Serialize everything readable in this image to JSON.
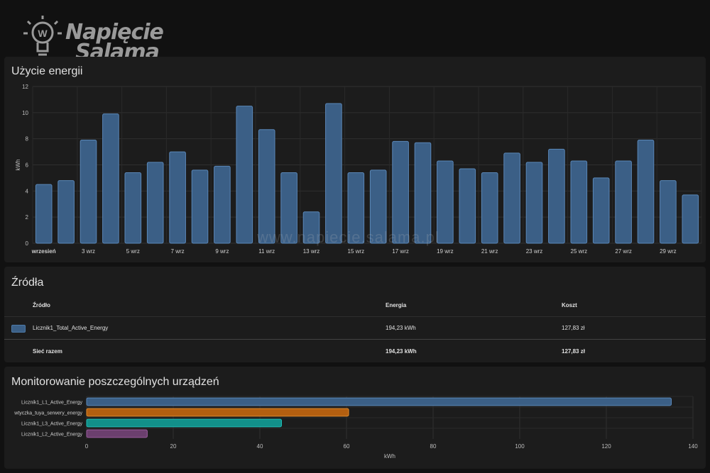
{
  "logo": {
    "line1": "Napięcie",
    "line2": "Salama"
  },
  "watermark": "www.napiecie.salama.pl",
  "energy": {
    "title": "Użycie energii",
    "chart_data": {
      "type": "bar",
      "ylabel": "kWh",
      "ylim": [
        0,
        12
      ],
      "yticks": [
        0,
        2,
        4,
        6,
        8,
        10,
        12
      ],
      "grid": true,
      "categories": [
        "1 wrz",
        "2 wrz",
        "3 wrz",
        "4 wrz",
        "5 wrz",
        "6 wrz",
        "7 wrz",
        "8 wrz",
        "9 wrz",
        "10 wrz",
        "11 wrz",
        "12 wrz",
        "13 wrz",
        "14 wrz",
        "15 wrz",
        "16 wrz",
        "17 wrz",
        "18 wrz",
        "19 wrz",
        "20 wrz",
        "21 wrz",
        "22 wrz",
        "23 wrz",
        "24 wrz",
        "25 wrz",
        "26 wrz",
        "27 wrz",
        "28 wrz",
        "29 wrz",
        "30 wrz"
      ],
      "tick_labels": [
        "wrzesień",
        "",
        "3 wrz",
        "",
        "5 wrz",
        "",
        "7 wrz",
        "",
        "9 wrz",
        "",
        "11 wrz",
        "",
        "13 wrz",
        "",
        "15 wrz",
        "",
        "17 wrz",
        "",
        "19 wrz",
        "",
        "21 wrz",
        "",
        "23 wrz",
        "",
        "25 wrz",
        "",
        "27 wrz",
        "",
        "29 wrz",
        ""
      ],
      "values": [
        4.5,
        4.8,
        7.9,
        9.9,
        5.4,
        6.2,
        7.0,
        5.6,
        5.9,
        10.5,
        8.7,
        5.4,
        2.4,
        10.7,
        5.4,
        5.6,
        7.8,
        7.7,
        6.3,
        5.7,
        5.4,
        6.9,
        6.2,
        7.2,
        6.3,
        5.0,
        6.3,
        7.9,
        4.8,
        3.7
      ],
      "color": "#3b5f86",
      "edge_color": "#5a87b8"
    }
  },
  "sources": {
    "title": "Źródła",
    "headers": {
      "source": "Źródło",
      "energy": "Energia",
      "cost": "Koszt"
    },
    "rows": [
      {
        "name": "Licznik1_Total_Active_Energy",
        "energy": "194,23 kWh",
        "cost": "127,83 zł",
        "color": "#3b5f86"
      }
    ],
    "total": {
      "name": "Sieć razem",
      "energy": "194,23 kWh",
      "cost": "127,83 zł"
    }
  },
  "devices": {
    "title": "Monitorowanie poszczególnych urządzeń",
    "chart_data": {
      "type": "bar",
      "orientation": "horizontal",
      "xlabel": "kWh",
      "xlim": [
        0,
        140
      ],
      "xticks": [
        0,
        20,
        40,
        60,
        80,
        100,
        120,
        140
      ],
      "categories": [
        "Licznik1_L1_Active_Energy",
        "wtyczka_tuya_serwery_energy",
        "Licznik1_L3_Active_Energy",
        "Licznik1_L2_Active_Energy"
      ],
      "values": [
        135,
        60.5,
        45,
        14
      ],
      "colors": [
        "#3b5f86",
        "#b35f10",
        "#12908a",
        "#6b3f6e"
      ],
      "edge_colors": [
        "#5a87b8",
        "#e08a2c",
        "#20bdb5",
        "#9a5c9e"
      ]
    }
  }
}
